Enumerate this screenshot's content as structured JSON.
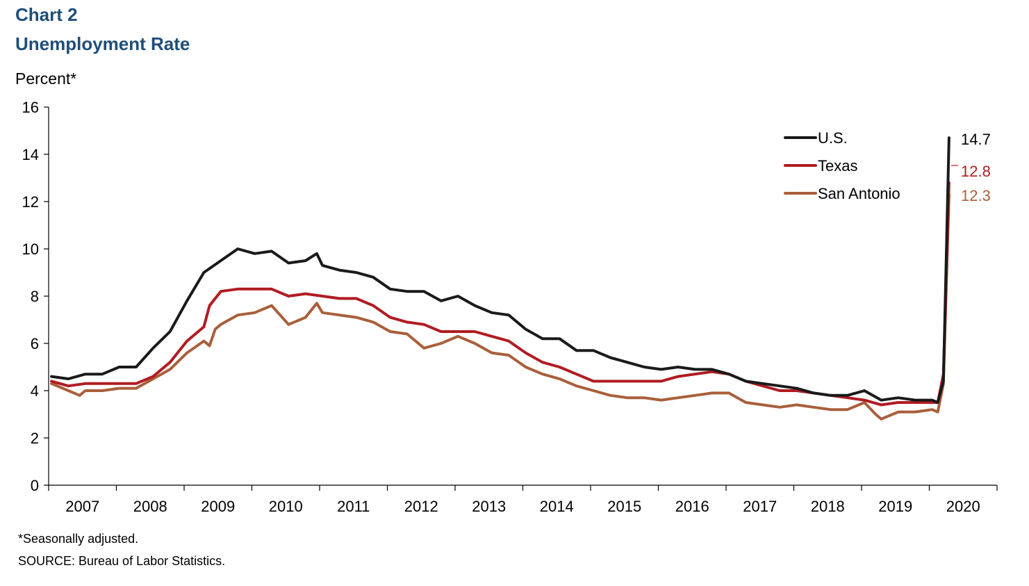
{
  "chart_label": "Chart 2",
  "colors": {
    "title": "#1f4e79",
    "us": "#1a1a1a",
    "texas": "#b01c22",
    "san_antonio": "#a95f3b"
  },
  "footnotes": {
    "note": "*Seasonally adjusted.",
    "source": "SOURCE: Bureau of Labor Statistics."
  },
  "chart_data": {
    "type": "line",
    "title": "Unemployment Rate",
    "ylabel": "Percent*",
    "xlabel": "",
    "ylim": [
      0,
      16
    ],
    "yticks": [
      0,
      2,
      4,
      6,
      8,
      10,
      12,
      14,
      16
    ],
    "x_range": [
      "2007-01",
      "2020-04"
    ],
    "x_tick_labels": [
      "2007",
      "2008",
      "2009",
      "2010",
      "2011",
      "2012",
      "2013",
      "2014",
      "2015",
      "2016",
      "2017",
      "2018",
      "2019",
      "2020"
    ],
    "grid": false,
    "legend": "top-right",
    "series": [
      {
        "name": "U.S.",
        "color": "#1a1a1a",
        "end_label": "14.7",
        "points": [
          [
            "2007-01",
            4.6
          ],
          [
            "2007-04",
            4.5
          ],
          [
            "2007-07",
            4.7
          ],
          [
            "2007-10",
            4.7
          ],
          [
            "2008-01",
            5.0
          ],
          [
            "2008-04",
            5.0
          ],
          [
            "2008-07",
            5.8
          ],
          [
            "2008-10",
            6.5
          ],
          [
            "2009-01",
            7.8
          ],
          [
            "2009-04",
            9.0
          ],
          [
            "2009-07",
            9.5
          ],
          [
            "2009-10",
            10.0
          ],
          [
            "2010-01",
            9.8
          ],
          [
            "2010-04",
            9.9
          ],
          [
            "2010-07",
            9.4
          ],
          [
            "2010-10",
            9.5
          ],
          [
            "2010-12",
            9.8
          ],
          [
            "2011-01",
            9.3
          ],
          [
            "2011-04",
            9.1
          ],
          [
            "2011-07",
            9.0
          ],
          [
            "2011-10",
            8.8
          ],
          [
            "2012-01",
            8.3
          ],
          [
            "2012-04",
            8.2
          ],
          [
            "2012-07",
            8.2
          ],
          [
            "2012-10",
            7.8
          ],
          [
            "2013-01",
            8.0
          ],
          [
            "2013-04",
            7.6
          ],
          [
            "2013-07",
            7.3
          ],
          [
            "2013-10",
            7.2
          ],
          [
            "2014-01",
            6.6
          ],
          [
            "2014-04",
            6.2
          ],
          [
            "2014-07",
            6.2
          ],
          [
            "2014-10",
            5.7
          ],
          [
            "2015-01",
            5.7
          ],
          [
            "2015-04",
            5.4
          ],
          [
            "2015-07",
            5.2
          ],
          [
            "2015-10",
            5.0
          ],
          [
            "2016-01",
            4.9
          ],
          [
            "2016-04",
            5.0
          ],
          [
            "2016-07",
            4.9
          ],
          [
            "2016-10",
            4.9
          ],
          [
            "2017-01",
            4.7
          ],
          [
            "2017-04",
            4.4
          ],
          [
            "2017-07",
            4.3
          ],
          [
            "2017-10",
            4.2
          ],
          [
            "2018-01",
            4.1
          ],
          [
            "2018-04",
            3.9
          ],
          [
            "2018-07",
            3.8
          ],
          [
            "2018-10",
            3.8
          ],
          [
            "2019-01",
            4.0
          ],
          [
            "2019-04",
            3.6
          ],
          [
            "2019-07",
            3.7
          ],
          [
            "2019-10",
            3.6
          ],
          [
            "2020-01",
            3.6
          ],
          [
            "2020-02",
            3.5
          ],
          [
            "2020-03",
            4.4
          ],
          [
            "2020-04",
            14.7
          ]
        ]
      },
      {
        "name": "Texas",
        "color": "#b01c22",
        "end_label": "12.8",
        "points": [
          [
            "2007-01",
            4.4
          ],
          [
            "2007-04",
            4.2
          ],
          [
            "2007-07",
            4.3
          ],
          [
            "2007-10",
            4.3
          ],
          [
            "2008-01",
            4.3
          ],
          [
            "2008-04",
            4.3
          ],
          [
            "2008-07",
            4.6
          ],
          [
            "2008-10",
            5.2
          ],
          [
            "2009-01",
            6.1
          ],
          [
            "2009-04",
            6.7
          ],
          [
            "2009-05",
            7.6
          ],
          [
            "2009-07",
            8.2
          ],
          [
            "2009-10",
            8.3
          ],
          [
            "2010-01",
            8.3
          ],
          [
            "2010-04",
            8.3
          ],
          [
            "2010-07",
            8.0
          ],
          [
            "2010-10",
            8.1
          ],
          [
            "2011-01",
            8.0
          ],
          [
            "2011-04",
            7.9
          ],
          [
            "2011-07",
            7.9
          ],
          [
            "2011-10",
            7.6
          ],
          [
            "2012-01",
            7.1
          ],
          [
            "2012-04",
            6.9
          ],
          [
            "2012-07",
            6.8
          ],
          [
            "2012-10",
            6.5
          ],
          [
            "2013-01",
            6.5
          ],
          [
            "2013-04",
            6.5
          ],
          [
            "2013-07",
            6.3
          ],
          [
            "2013-10",
            6.1
          ],
          [
            "2014-01",
            5.6
          ],
          [
            "2014-04",
            5.2
          ],
          [
            "2014-07",
            5.0
          ],
          [
            "2014-10",
            4.7
          ],
          [
            "2015-01",
            4.4
          ],
          [
            "2015-04",
            4.4
          ],
          [
            "2015-07",
            4.4
          ],
          [
            "2015-10",
            4.4
          ],
          [
            "2016-01",
            4.4
          ],
          [
            "2016-04",
            4.6
          ],
          [
            "2016-07",
            4.7
          ],
          [
            "2016-10",
            4.8
          ],
          [
            "2017-01",
            4.7
          ],
          [
            "2017-04",
            4.4
          ],
          [
            "2017-07",
            4.2
          ],
          [
            "2017-10",
            4.0
          ],
          [
            "2018-01",
            4.0
          ],
          [
            "2018-04",
            3.9
          ],
          [
            "2018-07",
            3.8
          ],
          [
            "2018-10",
            3.7
          ],
          [
            "2019-01",
            3.6
          ],
          [
            "2019-04",
            3.4
          ],
          [
            "2019-07",
            3.5
          ],
          [
            "2019-10",
            3.5
          ],
          [
            "2020-01",
            3.5
          ],
          [
            "2020-02",
            3.5
          ],
          [
            "2020-03",
            4.7
          ],
          [
            "2020-04",
            12.8
          ]
        ]
      },
      {
        "name": "San Antonio",
        "color": "#a95f3b",
        "end_label": "12.3",
        "points": [
          [
            "2007-01",
            4.3
          ],
          [
            "2007-04",
            4.0
          ],
          [
            "2007-06",
            3.8
          ],
          [
            "2007-07",
            4.0
          ],
          [
            "2007-10",
            4.0
          ],
          [
            "2008-01",
            4.1
          ],
          [
            "2008-04",
            4.1
          ],
          [
            "2008-07",
            4.5
          ],
          [
            "2008-10",
            4.9
          ],
          [
            "2009-01",
            5.6
          ],
          [
            "2009-04",
            6.1
          ],
          [
            "2009-05",
            5.9
          ],
          [
            "2009-06",
            6.6
          ],
          [
            "2009-07",
            6.8
          ],
          [
            "2009-10",
            7.2
          ],
          [
            "2010-01",
            7.3
          ],
          [
            "2010-04",
            7.6
          ],
          [
            "2010-07",
            6.8
          ],
          [
            "2010-10",
            7.1
          ],
          [
            "2010-12",
            7.7
          ],
          [
            "2011-01",
            7.3
          ],
          [
            "2011-04",
            7.2
          ],
          [
            "2011-07",
            7.1
          ],
          [
            "2011-10",
            6.9
          ],
          [
            "2012-01",
            6.5
          ],
          [
            "2012-04",
            6.4
          ],
          [
            "2012-07",
            5.8
          ],
          [
            "2012-10",
            6.0
          ],
          [
            "2013-01",
            6.3
          ],
          [
            "2013-04",
            6.0
          ],
          [
            "2013-07",
            5.6
          ],
          [
            "2013-10",
            5.5
          ],
          [
            "2014-01",
            5.0
          ],
          [
            "2014-04",
            4.7
          ],
          [
            "2014-07",
            4.5
          ],
          [
            "2014-10",
            4.2
          ],
          [
            "2015-01",
            4.0
          ],
          [
            "2015-04",
            3.8
          ],
          [
            "2015-07",
            3.7
          ],
          [
            "2015-10",
            3.7
          ],
          [
            "2016-01",
            3.6
          ],
          [
            "2016-04",
            3.7
          ],
          [
            "2016-07",
            3.8
          ],
          [
            "2016-10",
            3.9
          ],
          [
            "2017-01",
            3.9
          ],
          [
            "2017-04",
            3.5
          ],
          [
            "2017-07",
            3.4
          ],
          [
            "2017-10",
            3.3
          ],
          [
            "2018-01",
            3.4
          ],
          [
            "2018-04",
            3.3
          ],
          [
            "2018-07",
            3.2
          ],
          [
            "2018-10",
            3.2
          ],
          [
            "2019-01",
            3.5
          ],
          [
            "2019-03",
            3.0
          ],
          [
            "2019-04",
            2.8
          ],
          [
            "2019-07",
            3.1
          ],
          [
            "2019-10",
            3.1
          ],
          [
            "2020-01",
            3.2
          ],
          [
            "2020-02",
            3.1
          ],
          [
            "2020-03",
            4.3
          ],
          [
            "2020-04",
            12.3
          ]
        ]
      }
    ]
  }
}
